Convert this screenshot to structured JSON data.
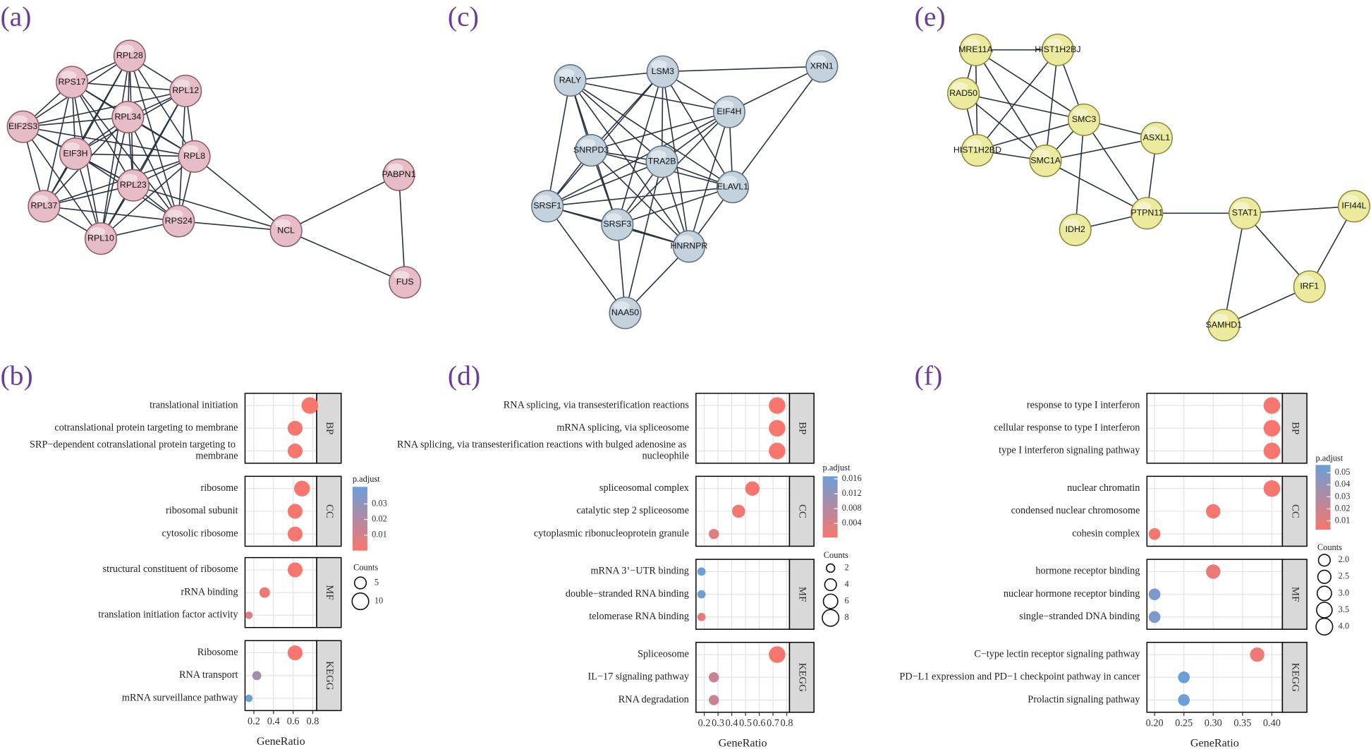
{
  "networks": [
    {
      "label": "(a)",
      "color": "#e6bcc6",
      "stroke": "#8c5b68",
      "nodes": [
        "RPL28",
        "RPS17",
        "RPL12",
        "RPL34",
        "EIF2S3",
        "EIF3H",
        "RPL8",
        "RPL23",
        "RPL37",
        "RPS24",
        "RPL10",
        "NCL",
        "PABPN1",
        "FUS"
      ]
    },
    {
      "label": "(c)",
      "color": "#c4d2de",
      "stroke": "#5e6f7d",
      "nodes": [
        "RALY",
        "LSM3",
        "XRN1",
        "EIF4H",
        "SNRPD3",
        "TRA2B",
        "ELAVL1",
        "SRSF1",
        "SRSF3",
        "HNRNPR",
        "NAA50"
      ]
    },
    {
      "label": "(e)",
      "color": "#ecea9c",
      "stroke": "#8a8840",
      "nodes": [
        "MRE11A",
        "HIST1H2BJ",
        "RAD50",
        "SMC3",
        "ASXL1",
        "HIST1H2BD",
        "SMC1A",
        "IDH2",
        "PTPN11",
        "STAT1",
        "IFI44L",
        "IRF1",
        "SAMHD1"
      ]
    }
  ],
  "chart_data": [
    {
      "type": "dot",
      "label": "(b)",
      "x_label": "GeneRatio",
      "xlim": [
        0.11,
        0.84
      ],
      "xticks": [
        0.2,
        0.4,
        0.6,
        0.8
      ],
      "grid": true,
      "facets": [
        {
          "name": "BP",
          "categories": [
            "translational initiation",
            "cotranslational protein targeting to membrane",
            "SRP−dependent cotranslational protein targeting to membrane"
          ],
          "values": [
            0.77,
            0.62,
            0.62
          ],
          "counts": [
            10,
            8,
            8
          ],
          "p_adjust": [
            0.0001,
            0.0002,
            0.0002
          ]
        },
        {
          "name": "CC",
          "categories": [
            "ribosome",
            "ribosomal subunit",
            "cytosolic ribosome"
          ],
          "values": [
            0.69,
            0.62,
            0.62
          ],
          "counts": [
            9,
            8,
            8
          ],
          "p_adjust": [
            0.0001,
            0.0002,
            0.0002
          ]
        },
        {
          "name": "MF",
          "categories": [
            "structural constituent of ribosome",
            "rRNA binding",
            "translation initiation factor activity"
          ],
          "values": [
            0.62,
            0.31,
            0.15
          ],
          "counts": [
            8,
            4,
            2
          ],
          "p_adjust": [
            0.0003,
            0.003,
            0.008
          ]
        },
        {
          "name": "KEGG",
          "categories": [
            "Ribosome",
            "RNA transport",
            "mRNA surveillance pathway"
          ],
          "values": [
            0.62,
            0.23,
            0.15
          ],
          "counts": [
            8,
            3,
            2
          ],
          "p_adjust": [
            0.0001,
            0.025,
            0.041
          ]
        }
      ],
      "color_legend": {
        "title": "p.adjust",
        "lim": [
          0,
          0.041
        ],
        "ticks": [
          0.01,
          0.02,
          0.03
        ],
        "low_color": "#f8766d",
        "high_color": "#6a9fd8"
      },
      "size_legend": {
        "title": "Counts",
        "values": [
          5,
          10
        ]
      }
    },
    {
      "type": "dot",
      "label": "(d)",
      "x_label": "GeneRatio",
      "xlim": [
        0.14,
        0.82
      ],
      "xticks": [
        0.2,
        0.3,
        0.4,
        0.5,
        0.6,
        0.7,
        0.8
      ],
      "grid": true,
      "facets": [
        {
          "name": "BP",
          "categories": [
            "RNA splicing, via transesterification reactions",
            "mRNA splicing, via spliceosome",
            "RNA splicing, via transesterification reactions with bulged adenosine as nucleophile"
          ],
          "values": [
            0.73,
            0.73,
            0.73
          ],
          "counts": [
            8,
            8,
            8
          ],
          "p_adjust": [
            0.0002,
            0.0002,
            0.0002
          ]
        },
        {
          "name": "CC",
          "categories": [
            "spliceosomal complex",
            "catalytic step 2 spliceosome",
            "cytoplasmic ribonucleoprotein granule"
          ],
          "values": [
            0.55,
            0.45,
            0.27
          ],
          "counts": [
            6,
            5,
            3
          ],
          "p_adjust": [
            0.0003,
            0.0005,
            0.003
          ]
        },
        {
          "name": "MF",
          "categories": [
            "mRNA 3’−UTR binding",
            "double−stranded RNA binding",
            "telomerase RNA binding"
          ],
          "values": [
            0.18,
            0.18,
            0.18
          ],
          "counts": [
            2,
            2,
            2
          ],
          "p_adjust": [
            0.0167,
            0.0165,
            0.002
          ]
        },
        {
          "name": "KEGG",
          "categories": [
            "Spliceosome",
            "IL−17 signaling pathway",
            "RNA degradation"
          ],
          "values": [
            0.73,
            0.27,
            0.27
          ],
          "counts": [
            8,
            3,
            3
          ],
          "p_adjust": [
            0.0004,
            0.006,
            0.006
          ]
        }
      ],
      "color_legend": {
        "title": "p.adjust",
        "lim": [
          0.0002,
          0.0167
        ],
        "ticks": [
          0.004,
          0.008,
          0.012,
          0.016
        ],
        "low_color": "#f8766d",
        "high_color": "#6a9fd8"
      },
      "size_legend": {
        "title": "Counts",
        "values": [
          2,
          4,
          6,
          8
        ]
      }
    },
    {
      "type": "dot",
      "label": "(f)",
      "x_label": "GeneRatio",
      "xlim": [
        0.187,
        0.418
      ],
      "xticks": [
        {
          "value": 0.2,
          "label": "0.20"
        },
        {
          "value": 0.25,
          "label": "0.25"
        },
        {
          "value": 0.3,
          "label": "0.30"
        },
        {
          "value": 0.35,
          "label": "0.35"
        },
        {
          "value": 0.4,
          "label": "0.40"
        }
      ],
      "grid": true,
      "facets": [
        {
          "name": "BP",
          "categories": [
            "response to type I interferon",
            "cellular response to type I interferon",
            "type I interferon signaling pathway"
          ],
          "values": [
            0.4,
            0.4,
            0.4
          ],
          "counts": [
            4,
            4,
            4
          ],
          "p_adjust": [
            0.0027,
            0.0027,
            0.0027
          ]
        },
        {
          "name": "CC",
          "categories": [
            "nuclear chromatin",
            "condensed nuclear chromosome",
            "cohesin complex"
          ],
          "values": [
            0.4,
            0.3,
            0.2
          ],
          "counts": [
            4,
            3,
            2
          ],
          "p_adjust": [
            0.0027,
            0.004,
            0.003
          ]
        },
        {
          "name": "MF",
          "categories": [
            "hormone receptor binding",
            "nuclear hormone receptor binding",
            "single−stranded DNA binding"
          ],
          "values": [
            0.3,
            0.2,
            0.2
          ],
          "counts": [
            3,
            2,
            2
          ],
          "p_adjust": [
            0.008,
            0.05,
            0.05
          ]
        },
        {
          "name": "KEGG",
          "categories": [
            "C−type lectin receptor signaling pathway",
            "PD−L1 expression and PD−1 checkpoint pathway in cancer",
            "Prolactin signaling pathway"
          ],
          "values": [
            0.375,
            0.25,
            0.25
          ],
          "counts": [
            3,
            2,
            2
          ],
          "p_adjust": [
            0.006,
            0.0565,
            0.0565
          ]
        }
      ],
      "color_legend": {
        "title": "p.adjust",
        "lim": [
          0.0027,
          0.0565
        ],
        "ticks": [
          0.01,
          0.02,
          0.03,
          0.04,
          0.05
        ],
        "low_color": "#f8766d",
        "high_color": "#6a9fd8"
      },
      "size_legend": {
        "title": "Counts",
        "values": [
          {
            "value": 2,
            "label": "2.0"
          },
          {
            "value": 2.5,
            "label": "2.5"
          },
          {
            "value": 3,
            "label": "3.0"
          },
          {
            "value": 3.5,
            "label": "3.5"
          },
          {
            "value": 4,
            "label": "4.0"
          }
        ]
      }
    }
  ]
}
